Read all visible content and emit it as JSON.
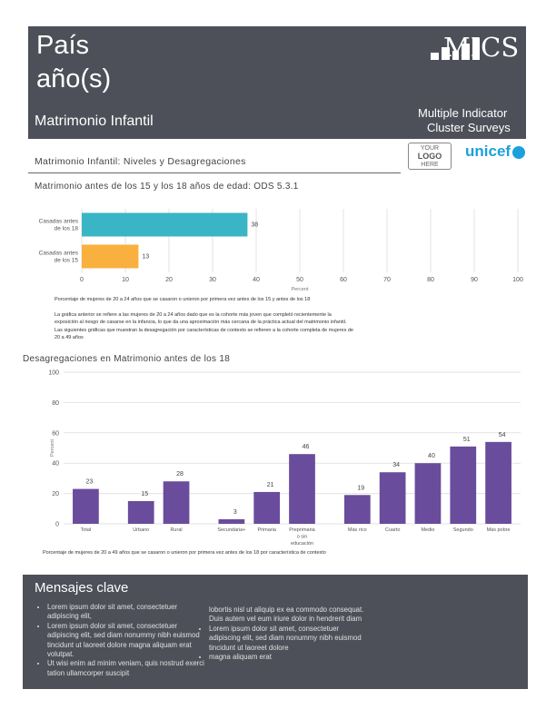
{
  "header": {
    "country": "País",
    "years": "año(s)",
    "subtitle": "Matrimonio Infantil",
    "mics_logo_text": "MICS",
    "tagline_1": "Multiple Indicator",
    "tagline_2": "Cluster Surveys"
  },
  "section_title": "Matrimonio Infantil: Niveles y Desagregaciones",
  "logo_placeholder": [
    "YOUR",
    "LOGO",
    "HERE"
  ],
  "unicef_text": "unicef",
  "chart1_title": "Matrimonio antes de los 15 y los 18 años de edad: ODS 5.3.1",
  "chart1_note": "Porcentaje de mujeres de 20 a 24 años que se casaron o unieron por primera vez antes de los 15 y antes de los 18",
  "chart1_paragraph": "La gráfica anterior se refiere a las mujeres de 20 a 24 años dado que es la cohorte más joven que completó recientemente la exposición al riesgo de casarse en la infancia, lo que da una aproximación más cercana de la práctica actual del matrimonio infantil. Las siguientes gráficas que muestran la desagregación por características de contexto se refieren a la cohorte completa de mujeres de 20 a 49 años",
  "chart2_title": "Desagregaciones en Matrimonio antes de los 18",
  "chart2_note": "Porcentaje de mujeres de 20 a 49 años que se casaron o unieron por primera vez antes de los 18 por característica de contexto",
  "chart_data": [
    {
      "type": "bar",
      "orientation": "horizontal",
      "categories": [
        "Casadas antes de los 18",
        "Casadas antes de los 15"
      ],
      "values": [
        38,
        13
      ],
      "colors": [
        "#3ab5c6",
        "#f9b03f"
      ],
      "xlim": [
        0,
        100
      ],
      "xticks": [
        0,
        10,
        20,
        30,
        40,
        50,
        60,
        70,
        80,
        90,
        100
      ],
      "xlabel": "Percent",
      "grid": true
    },
    {
      "type": "bar",
      "orientation": "vertical",
      "categories": [
        "Total",
        "Urbano",
        "Rural",
        "Secundaria+",
        "Primaria",
        "Preprimaria o sin educación",
        "Más rico",
        "Cuarto",
        "Medio",
        "Segundo",
        "Más pobre"
      ],
      "values": [
        23,
        15,
        28,
        3,
        21,
        46,
        19,
        34,
        40,
        51,
        54
      ],
      "groups": [
        [
          0
        ],
        [
          1,
          2
        ],
        [
          3,
          4,
          5
        ],
        [
          6,
          7,
          8,
          9,
          10
        ]
      ],
      "color": "#6a4c9c",
      "ylim": [
        0,
        100
      ],
      "yticks": [
        0,
        20,
        40,
        60,
        80,
        100
      ],
      "ylabel": "Percent",
      "grid": true
    }
  ],
  "key_messages": {
    "title": "Mensajes clave",
    "col1": [
      "Lorem ipsum dolor sit amet, consectetuer adipiscing elit,",
      "Lorem ipsum dolor sit amet, consectetuer adipiscing elit, sed diam nonummy nibh euismod tincidunt ut laoreet dolore magna aliquam erat volutpat.",
      "Ut wisi enim ad minim veniam, quis nostrud exerci tation ullamcorper suscipit"
    ],
    "col2_intro": "lobortis nisl ut aliquip ex ea commodo consequat. Duis autem vel eum iriure dolor in hendrerit diam",
    "col2": [
      "Lorem ipsum dolor sit amet, consectetuer adipiscing elit, sed diam nonummy nibh euismod tincidunt ut laoreet dolore",
      "magna aliquam erat"
    ]
  },
  "colors": {
    "header_bg": "#4e5059",
    "bar_18": "#3ab5c6",
    "bar_15": "#f9b03f",
    "bar_disagg": "#6a4c9c",
    "unicef_blue": "#1ca0dc"
  }
}
